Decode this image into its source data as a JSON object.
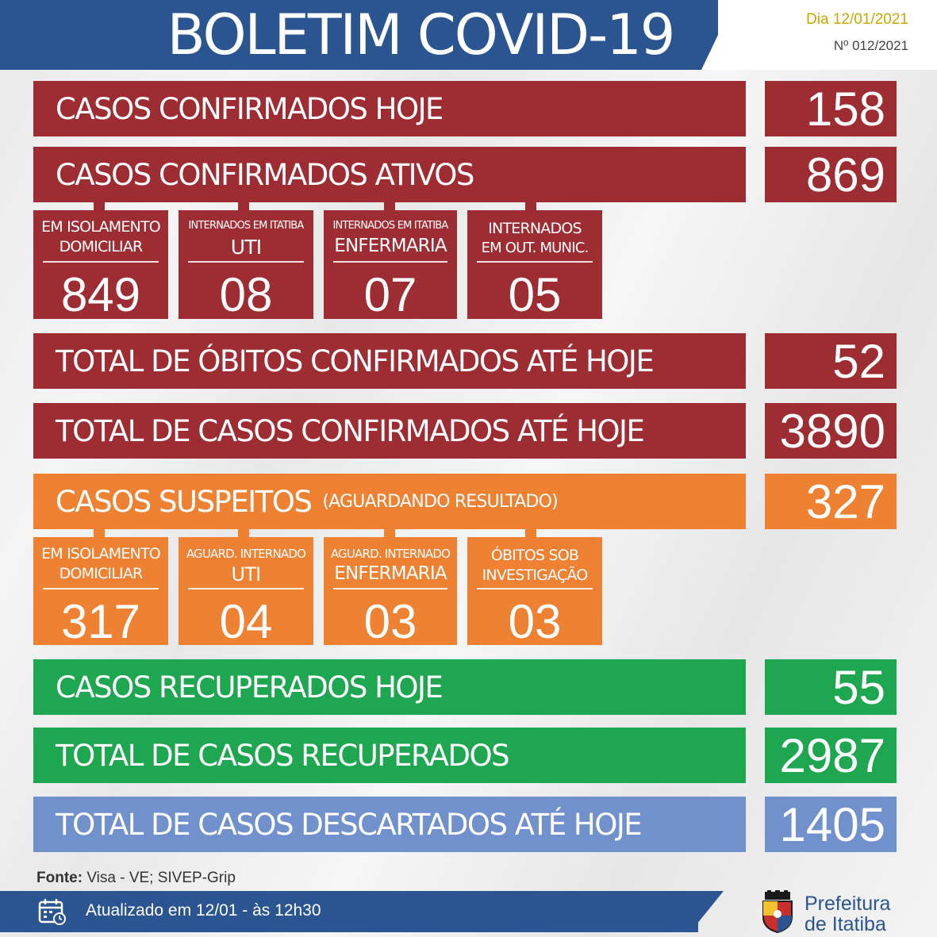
{
  "header": {
    "title": "BOLETIM COVID-19",
    "date": "Dia 12/01/2021",
    "number": "Nº 012/2021"
  },
  "confirmed": {
    "today": {
      "label": "CASOS CONFIRMADOS HOJE",
      "value": "158"
    },
    "active": {
      "label": "CASOS CONFIRMADOS ATIVOS",
      "value": "869"
    },
    "breakdown": [
      {
        "line1": "EM ISOLAMENTO",
        "line2": "DOMICILIAR",
        "value": "849"
      },
      {
        "line1": "INTERNADOS EM ITATIBA",
        "line2": "UTI",
        "value": "08"
      },
      {
        "line1": "INTERNADOS EM ITATIBA",
        "line2": "ENFERMARIA",
        "value": "07"
      },
      {
        "line1": "INTERNADOS",
        "line2": "EM OUT. MUNIC.",
        "value": "05"
      }
    ],
    "deaths_total": {
      "label": "TOTAL DE ÓBITOS CONFIRMADOS ATÉ HOJE",
      "value": "52"
    },
    "cases_total": {
      "label": "TOTAL DE CASOS CONFIRMADOS ATÉ HOJE",
      "value": "3890"
    }
  },
  "suspected": {
    "label": "CASOS SUSPEITOS",
    "sublabel": "(AGUARDANDO RESULTADO)",
    "value": "327",
    "breakdown": [
      {
        "line1": "EM ISOLAMENTO",
        "line2": "DOMICILIAR",
        "value": "317"
      },
      {
        "line1": "AGUARD. INTERNADO",
        "line2": "UTI",
        "value": "04"
      },
      {
        "line1": "AGUARD. INTERNADO",
        "line2": "ENFERMARIA",
        "value": "03"
      },
      {
        "line1": "ÓBITOS SOB",
        "line2": "INVESTIGAÇÃO",
        "value": "03"
      }
    ]
  },
  "recovered": {
    "today": {
      "label": "CASOS RECUPERADOS HOJE",
      "value": "55"
    },
    "total": {
      "label": "TOTAL DE CASOS RECUPERADOS",
      "value": "2987"
    }
  },
  "discarded": {
    "label": "TOTAL DE CASOS DESCARTADOS ATÉ HOJE",
    "value": "1405"
  },
  "footer": {
    "source_label": "Fonte:",
    "source_text": " Visa - VE; SIVEP-Grip",
    "updated": "Atualizado em  12/01 - às 12h30",
    "org_line1": "Prefeitura",
    "org_line2": "de Itatiba"
  },
  "icons": {
    "calendar": "calendar-clock-icon",
    "logo": "city-coat-of-arms-icon"
  },
  "colors": {
    "header": "#2a5591",
    "red": "#9d2d33",
    "orange": "#ef8132",
    "green": "#1fa651",
    "blue": "#7191cd"
  }
}
